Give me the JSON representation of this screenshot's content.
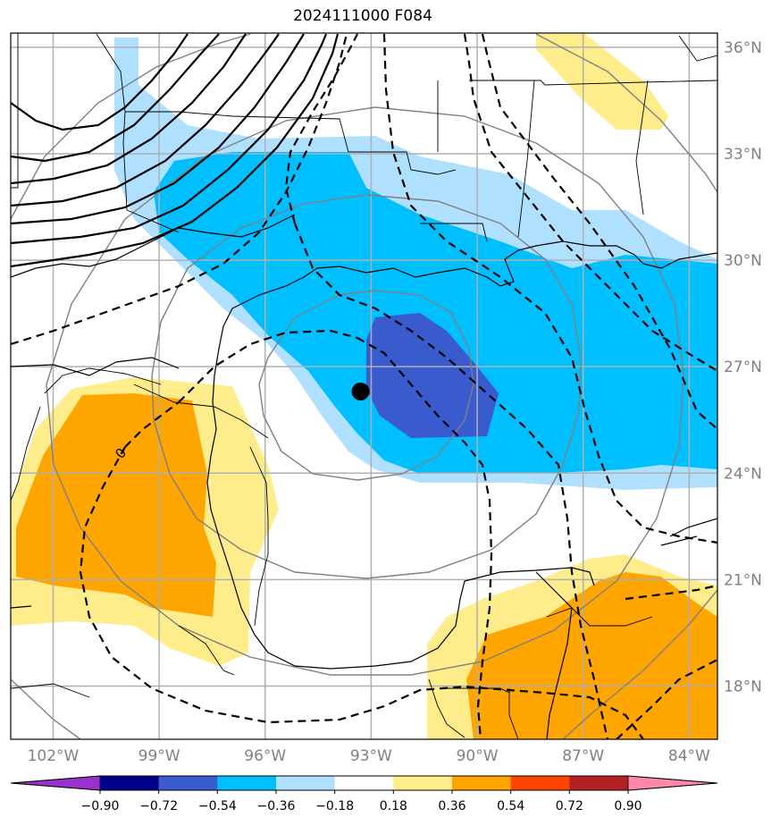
{
  "title": "2024111000 F084",
  "map": {
    "lon_labels": [
      "102°W",
      "99°W",
      "96°W",
      "93°W",
      "90°W",
      "87°W",
      "84°W"
    ],
    "lon_values": [
      -102,
      -99,
      -96,
      -93,
      -90,
      -87,
      -84
    ],
    "lat_labels": [
      "36°N",
      "33°N",
      "30°N",
      "27°N",
      "24°N",
      "21°N",
      "18°N"
    ],
    "lat_values": [
      36,
      33,
      30,
      27,
      24,
      21,
      18
    ],
    "extent": {
      "lon_min": -103.2,
      "lon_max": -83.2,
      "lat_min": 16.5,
      "lat_max": 36.4
    },
    "center_marker": {
      "lon": -93.3,
      "lat": 26.3
    },
    "contour_label": "0"
  },
  "colorbar": {
    "colors": [
      "#9932cc",
      "#00008b",
      "#3a5bcd",
      "#00bfff",
      "#b0e0ff",
      "#ffffff",
      "#ffec8b",
      "#ffa500",
      "#ff4500",
      "#b22222",
      "#ff88aa"
    ],
    "tick_labels": [
      "−0.90",
      "−0.72",
      "−0.54",
      "−0.36",
      "−0.18",
      "0.18",
      "0.36",
      "0.54",
      "0.72",
      "0.90"
    ]
  },
  "colors": {
    "shade_dark_blue": "#3a5bcd",
    "shade_mid_blue": "#00bfff",
    "shade_light_blue": "#b0e0ff",
    "shade_yellow": "#ffec8b",
    "shade_orange": "#ffa500",
    "grid": "#b0b0b0",
    "tick_text": "#808080"
  }
}
